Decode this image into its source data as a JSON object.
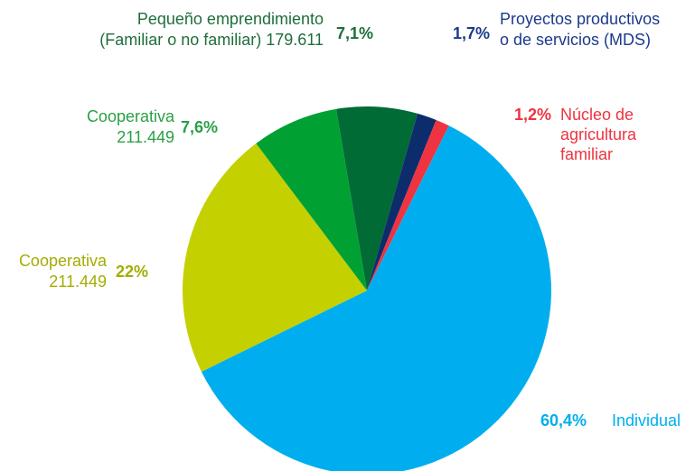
{
  "chart_data": {
    "type": "pie",
    "categories": [
      [
        "Pequeño emprendimiento",
        "(Familiar o no familiar) 179.611"
      ],
      [
        "Proyectos productivos",
        "o de servicios (MDS)"
      ],
      [
        "Núcleo de",
        "agricultura",
        "familiar"
      ],
      [
        "Individual"
      ],
      [
        "Cooperativa",
        "211.449"
      ],
      [
        "Cooperativa",
        "211.449"
      ]
    ],
    "values": [
      7.1,
      1.7,
      1.2,
      60.4,
      22,
      7.6
    ],
    "value_labels": [
      "7,1%",
      "1,7%",
      "1,2%",
      "60,4%",
      "22%",
      "7,6%"
    ],
    "colors": [
      "#006b35",
      "#0d2c6c",
      "#ef3340",
      "#00aeef",
      "#c4d000",
      "#00a033"
    ],
    "label_colors": [
      "#1f6e3a",
      "#1b3a8a",
      "#ee3340",
      "#00aeef",
      "#a3ad00",
      "#2a9f45"
    ]
  }
}
